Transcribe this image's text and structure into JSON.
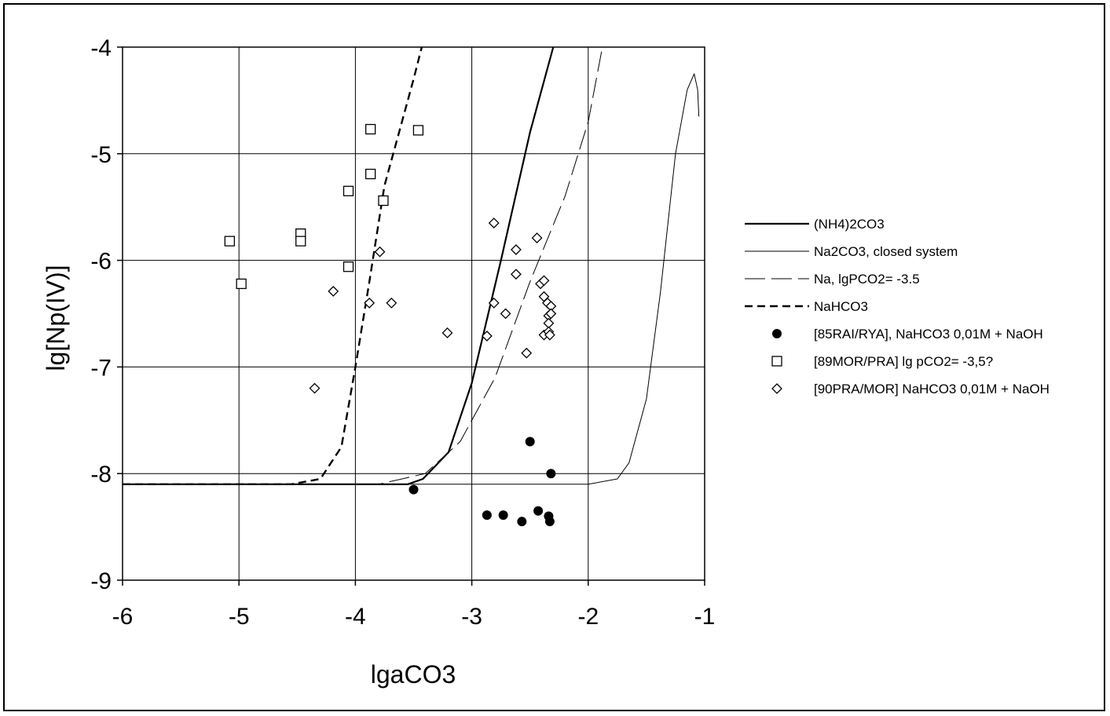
{
  "chart_data": {
    "type": "scatter",
    "xlabel": "lgaCO3",
    "ylabel": "lg[Np(IV)]",
    "xlim": [
      -6,
      -1
    ],
    "ylim": [
      -9,
      -4
    ],
    "xticks": [
      "-6",
      "-5",
      "-4",
      "-3",
      "-2",
      "-1"
    ],
    "yticks": [
      "-4",
      "-5",
      "-6",
      "-7",
      "-8",
      "-9"
    ],
    "grid": true,
    "legend_position": "right",
    "lines": [
      {
        "name": "(NH4)2CO3",
        "style": "solid-thick",
        "x": [
          -6,
          -3.55,
          -3.42,
          -3.2,
          -3.0,
          -2.75,
          -2.5,
          -2.3
        ],
        "y": [
          -8.1,
          -8.1,
          -8.05,
          -7.8,
          -7.15,
          -6.0,
          -4.8,
          -4.0
        ]
      },
      {
        "name": "Na2CO3, closed system",
        "style": "solid-thin",
        "x": [
          -6,
          -2.0,
          -1.75,
          -1.65,
          -1.5,
          -1.38,
          -1.25,
          -1.15,
          -1.09,
          -1.06,
          -1.05
        ],
        "y": [
          -8.1,
          -8.1,
          -8.05,
          -7.9,
          -7.3,
          -6.3,
          -5.0,
          -4.4,
          -4.25,
          -4.4,
          -4.65
        ]
      },
      {
        "name": "Na, lgPCO2= -3.5",
        "style": "long-dash-thin",
        "x": [
          -6,
          -3.8,
          -3.4,
          -3.1,
          -2.95,
          -2.8,
          -2.5,
          -2.2,
          -2.0,
          -1.87
        ],
        "y": [
          -8.1,
          -8.1,
          -8.0,
          -7.7,
          -7.4,
          -7.1,
          -6.2,
          -5.4,
          -4.7,
          -3.95
        ]
      },
      {
        "name": "NaHCO3",
        "style": "dashed-thick",
        "x": [
          -6,
          -4.55,
          -4.3,
          -4.12,
          -4.0,
          -3.88,
          -3.75,
          -3.6,
          -3.5,
          -3.43
        ],
        "y": [
          -8.1,
          -8.1,
          -8.05,
          -7.75,
          -7.0,
          -6.2,
          -5.3,
          -4.7,
          -4.3,
          -4.0
        ]
      }
    ],
    "series": [
      {
        "name": "[85RAI/RYA], NaHCO3 0,01M + NaOH",
        "marker": "filled-circle",
        "points": [
          [
            -3.5,
            -8.15
          ],
          [
            -2.87,
            -8.39
          ],
          [
            -2.73,
            -8.39
          ],
          [
            -2.57,
            -8.45
          ],
          [
            -2.43,
            -8.35
          ],
          [
            -2.34,
            -8.4
          ],
          [
            -2.33,
            -8.45
          ],
          [
            -2.5,
            -7.7
          ],
          [
            -2.32,
            -8.0
          ]
        ]
      },
      {
        "name": "[89MOR/PRA] lg pCO2= -3,5?",
        "marker": "open-square",
        "points": [
          [
            -5.08,
            -5.82
          ],
          [
            -4.98,
            -6.22
          ],
          [
            -4.47,
            -5.75
          ],
          [
            -4.47,
            -5.82
          ],
          [
            -4.06,
            -5.35
          ],
          [
            -4.06,
            -6.06
          ],
          [
            -3.87,
            -4.77
          ],
          [
            -3.87,
            -5.19
          ],
          [
            -3.76,
            -5.44
          ],
          [
            -3.46,
            -4.78
          ]
        ]
      },
      {
        "name": "[90PRA/MOR] NaHCO3 0,01M + NaOH",
        "marker": "open-diamond",
        "points": [
          [
            -4.35,
            -7.2
          ],
          [
            -4.19,
            -6.29
          ],
          [
            -3.88,
            -6.4
          ],
          [
            -3.79,
            -5.92
          ],
          [
            -3.69,
            -6.4
          ],
          [
            -3.21,
            -6.68
          ],
          [
            -2.87,
            -6.71
          ],
          [
            -2.81,
            -5.65
          ],
          [
            -2.81,
            -6.4
          ],
          [
            -2.71,
            -6.5
          ],
          [
            -2.62,
            -5.9
          ],
          [
            -2.62,
            -6.13
          ],
          [
            -2.53,
            -6.87
          ],
          [
            -2.44,
            -5.79
          ],
          [
            -2.41,
            -6.22
          ],
          [
            -2.38,
            -6.19
          ],
          [
            -2.38,
            -6.34
          ],
          [
            -2.38,
            -6.7
          ],
          [
            -2.35,
            -6.4
          ],
          [
            -2.34,
            -6.52
          ],
          [
            -2.34,
            -6.59
          ],
          [
            -2.34,
            -6.67
          ],
          [
            -2.33,
            -6.7
          ],
          [
            -2.32,
            -6.43
          ],
          [
            -2.32,
            -6.5
          ]
        ]
      }
    ]
  }
}
